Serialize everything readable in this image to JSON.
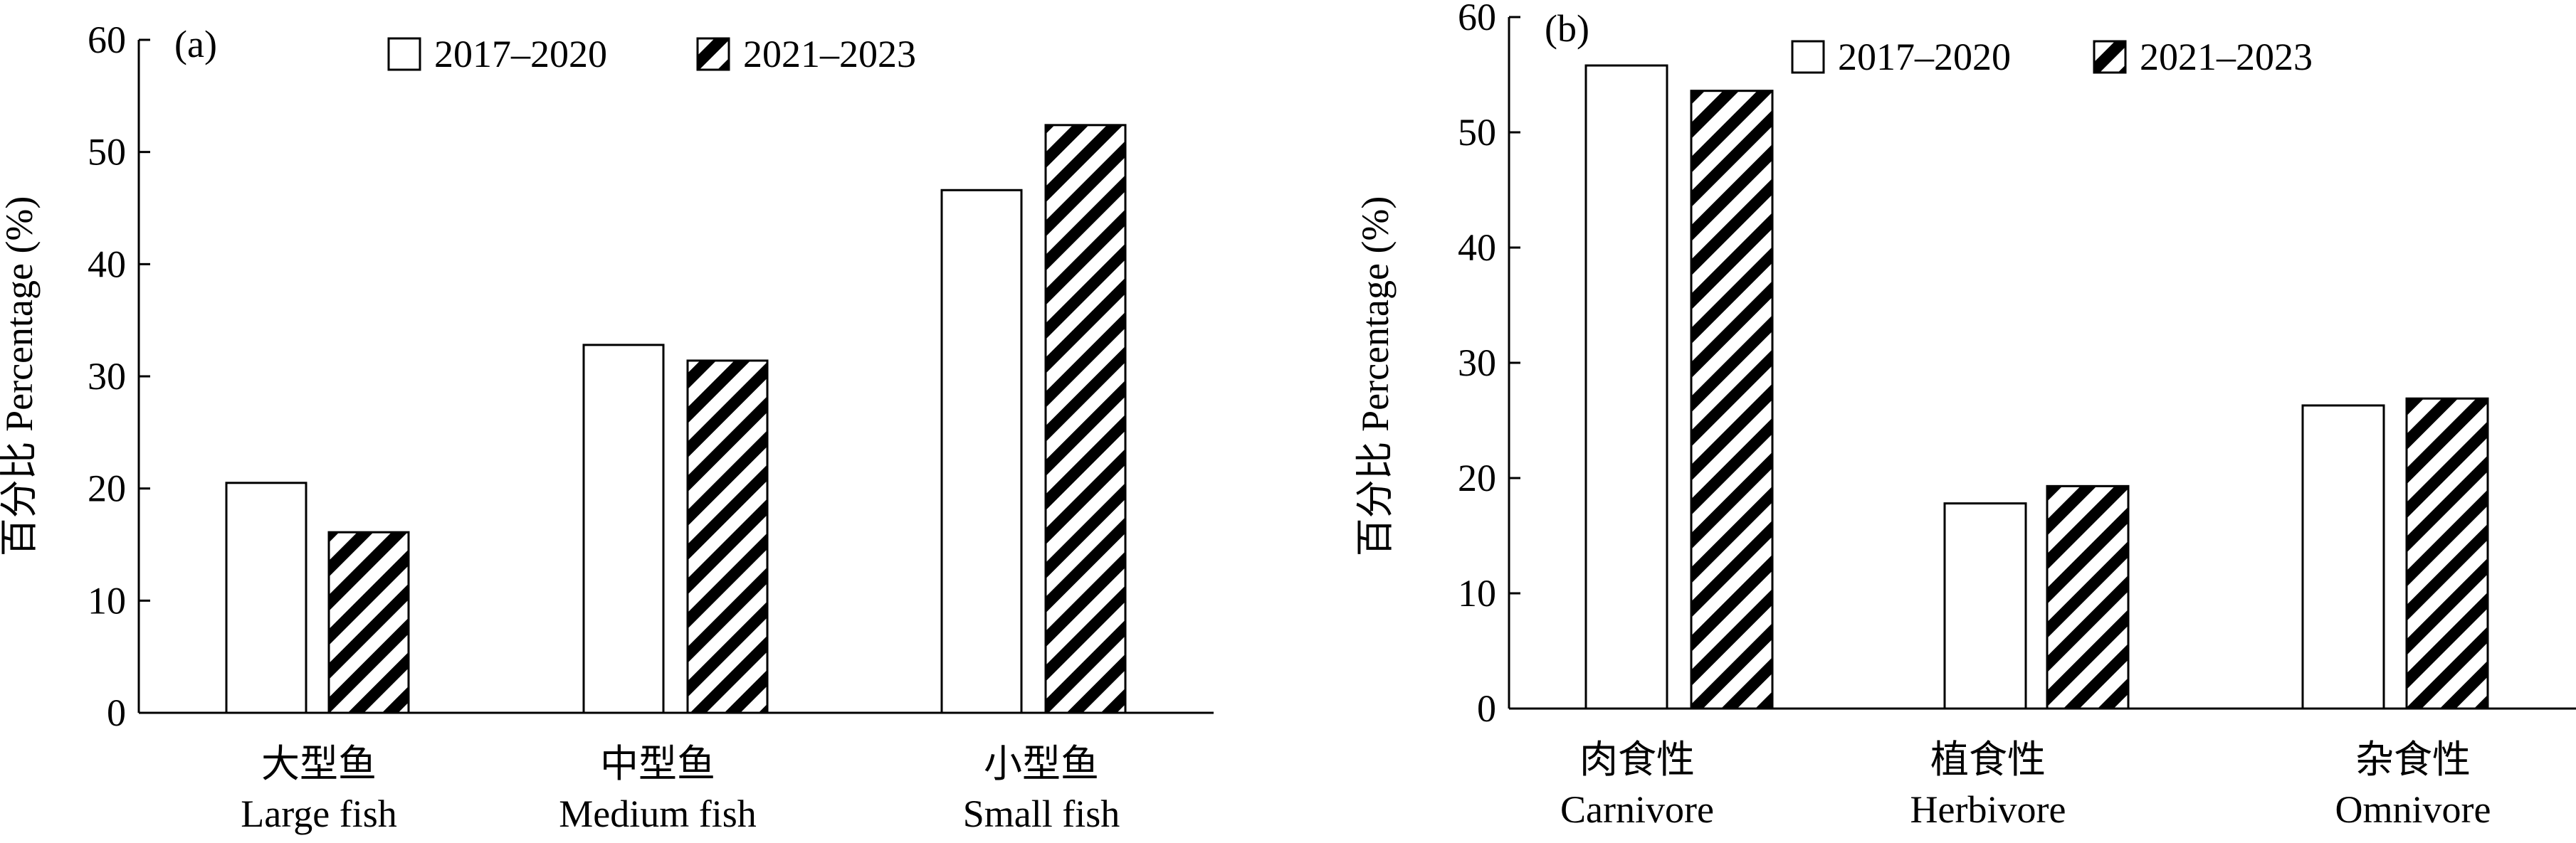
{
  "chart_data": [
    {
      "type": "bar",
      "panel": "(a)",
      "ylabel": "百分比 Percentage (%)",
      "ylim": [
        0,
        60
      ],
      "yticks": [
        0,
        10,
        20,
        30,
        40,
        50,
        60
      ],
      "categories": [
        {
          "cn": "大型鱼",
          "en": "Large fish"
        },
        {
          "cn": "中型鱼",
          "en": "Medium fish"
        },
        {
          "cn": "小型鱼",
          "en": "Small fish"
        }
      ],
      "series": [
        {
          "name": "2017–2020",
          "pattern": "none",
          "values": [
            20.5,
            32.8,
            46.6
          ]
        },
        {
          "name": "2021–2023",
          "pattern": "hatch",
          "values": [
            16.1,
            31.4,
            52.4
          ]
        }
      ],
      "legend": "top"
    },
    {
      "type": "bar",
      "panel": "(b)",
      "ylabel": "百分比 Percentage (%)",
      "ylim": [
        0,
        60
      ],
      "yticks": [
        0,
        10,
        20,
        30,
        40,
        50,
        60
      ],
      "categories": [
        {
          "cn": "肉食性",
          "en": "Carnivore"
        },
        {
          "cn": "植食性",
          "en": "Herbivore"
        },
        {
          "cn": "杂食性",
          "en": "Omnivore"
        }
      ],
      "series": [
        {
          "name": "2017–2020",
          "pattern": "none",
          "values": [
            55.8,
            17.8,
            26.3
          ]
        },
        {
          "name": "2021–2023",
          "pattern": "hatch",
          "values": [
            53.6,
            19.3,
            26.9
          ]
        }
      ],
      "legend": "top"
    }
  ]
}
